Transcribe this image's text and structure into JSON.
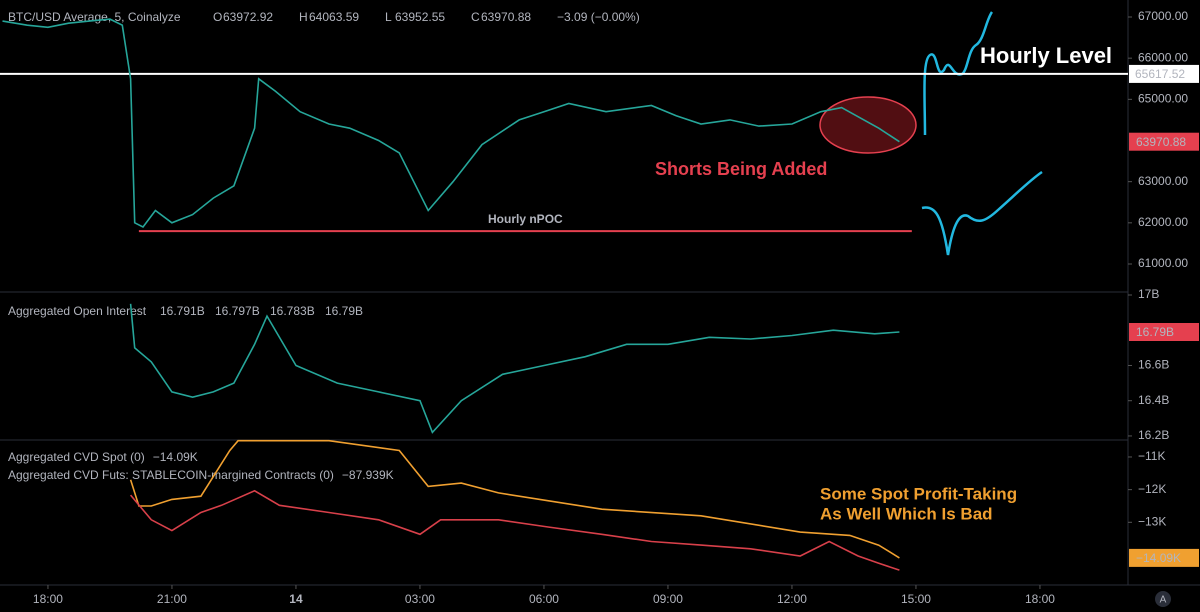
{
  "chart_data": [
    {
      "type": "line",
      "title": "BTC/USD Average, 5, Coinalyze",
      "ohlc": [
        {
          "key": "O",
          "value": "63972.92"
        },
        {
          "key": "H",
          "value": "64063.59"
        },
        {
          "key": "L",
          "value": "63952.55"
        },
        {
          "key": "C",
          "value": "63970.88"
        }
      ],
      "change": "−3.09 (−0.00%)",
      "xlim": [
        -1.16,
        26.13
      ],
      "ylim": [
        60320,
        67413
      ],
      "yticks": [
        {
          "value": 61000,
          "label": "61000.00"
        },
        {
          "value": 62000,
          "label": "62000.00"
        },
        {
          "value": 63000,
          "label": "63000.00"
        },
        {
          "value": 65000,
          "label": "65000.00"
        },
        {
          "value": 66000,
          "label": "66000.00"
        },
        {
          "value": 67000,
          "label": "67000.00"
        }
      ],
      "series": [
        {
          "name": "BTC/USD Average",
          "color": "#26a69a",
          "x": [
            -1.1,
            -0.5,
            0,
            0.5,
            1,
            1.5,
            1.8,
            2.0,
            2.1,
            2.3,
            2.6,
            3,
            3.5,
            4,
            4.5,
            5,
            5.1,
            5.5,
            6.1,
            6.8,
            7.3,
            8,
            8.5,
            9.2,
            9.8,
            10.5,
            11.4,
            12,
            12.6,
            13.5,
            14.6,
            15.2,
            15.8,
            16.5,
            17.2,
            18,
            18.7,
            19.2,
            20.1,
            20.6
          ],
          "values": [
            66900,
            66800,
            66750,
            66850,
            66900,
            66950,
            66800,
            65500,
            62000,
            61900,
            62300,
            62000,
            62200,
            62600,
            62900,
            64300,
            65500,
            65200,
            64700,
            64400,
            64300,
            64000,
            63700,
            62300,
            63000,
            63900,
            64500,
            64700,
            64900,
            64700,
            64850,
            64600,
            64400,
            64500,
            64350,
            64400,
            64700,
            64800,
            64300,
            63970.88
          ],
          "last_label": "63970.88",
          "last_color": "#e5404f"
        }
      ],
      "levels": [
        {
          "value": 65617.52,
          "label": "65617.52",
          "color": "#ffffff"
        },
        {
          "value": 61800,
          "label": "Hourly nPOC",
          "color": "#e5404f",
          "xrange": [
            2.2,
            20.9
          ]
        }
      ],
      "annotations": [
        "Hourly Level",
        "Shorts Being Added"
      ]
    },
    {
      "type": "line",
      "title": "Aggregated Open Interest",
      "readout": [
        "16.791B",
        "16.797B",
        "16.783B",
        "16.79B"
      ],
      "xlim": [
        -1.16,
        26.13
      ],
      "ylim": [
        16.177,
        17.017
      ],
      "yticks": [
        {
          "value": 16.2,
          "label": "16.2B"
        },
        {
          "value": 16.4,
          "label": "16.4B"
        },
        {
          "value": 16.6,
          "label": "16.6B"
        },
        {
          "value": 17,
          "label": "17B"
        }
      ],
      "series": [
        {
          "name": "Aggregated Open Interest",
          "color": "#26a69a",
          "x": [
            2,
            2.1,
            2.5,
            3,
            3.5,
            4,
            4.5,
            5,
            5.3,
            6,
            7,
            8,
            9,
            9.3,
            10,
            11,
            12,
            13,
            14,
            15,
            16,
            17,
            18,
            19,
            20,
            20.6
          ],
          "values": [
            16.95,
            16.7,
            16.62,
            16.45,
            16.42,
            16.45,
            16.5,
            16.72,
            16.88,
            16.6,
            16.5,
            16.45,
            16.4,
            16.22,
            16.4,
            16.55,
            16.6,
            16.65,
            16.72,
            16.72,
            16.76,
            16.75,
            16.77,
            16.8,
            16.78,
            16.79
          ],
          "last_label": "16.79B",
          "last_color": "#e5404f"
        }
      ]
    },
    {
      "type": "line",
      "xlim": [
        -1.16,
        26.13
      ],
      "ylim": [
        -14.92,
        -10.48
      ],
      "y2lim": [
        -90,
        -70
      ],
      "yticks": [
        {
          "value": -11,
          "label": "−11K"
        },
        {
          "value": -12,
          "label": "−12K"
        },
        {
          "value": -13,
          "label": "−13K"
        }
      ],
      "xticks": [
        {
          "value": 0,
          "label": "18:00"
        },
        {
          "value": 3,
          "label": "21:00"
        },
        {
          "value": 6,
          "label": "14"
        },
        {
          "value": 9,
          "label": "03:00"
        },
        {
          "value": 12,
          "label": "06:00"
        },
        {
          "value": 15,
          "label": "09:00"
        },
        {
          "value": 18,
          "label": "12:00"
        },
        {
          "value": 21,
          "label": "15:00"
        },
        {
          "value": 24,
          "label": "18:00"
        }
      ],
      "series": [
        {
          "name": "Aggregated CVD Spot (0)",
          "readout": "−14.09K",
          "color": "#f0a030",
          "x": [
            2.0,
            2.2,
            2.5,
            3,
            3.7,
            4.4,
            4.6,
            6.8,
            8.5,
            9.2,
            10,
            10.9,
            13.4,
            15.8,
            18.2,
            19.4,
            20.1,
            20.6
          ],
          "values": [
            -11.7,
            -12.5,
            -12.5,
            -12.3,
            -12.2,
            -10.8,
            -10.5,
            -10.5,
            -10.8,
            -11.9,
            -11.8,
            -12.1,
            -12.6,
            -12.8,
            -13.3,
            -13.4,
            -13.7,
            -14.09
          ],
          "last_label": "−14.09K",
          "last_color": "#f0a030"
        },
        {
          "name": "Aggregated CVD Futs: STABLECOIN-margined Contracts (0)",
          "readout": "−87.939K",
          "color": "#d8404a",
          "axis": "y2",
          "x": [
            2.0,
            2.5,
            3,
            3.7,
            4.2,
            5.0,
            5.6,
            6.8,
            8.0,
            9.0,
            9.5,
            10.9,
            12.1,
            13.4,
            14.6,
            15.8,
            17,
            18.2,
            18.9,
            19.6,
            20.1,
            20.6
          ],
          "values": [
            -77.6,
            -81,
            -82.5,
            -80,
            -79,
            -77,
            -79,
            -80,
            -81,
            -83,
            -81,
            -81,
            -82,
            -83,
            -84,
            -84.5,
            -85,
            -86,
            -84,
            -86,
            -87,
            -87.939
          ]
        }
      ],
      "annotations": [
        "Some Spot Profit-Taking",
        "As Well Which Is Bad"
      ]
    }
  ]
}
